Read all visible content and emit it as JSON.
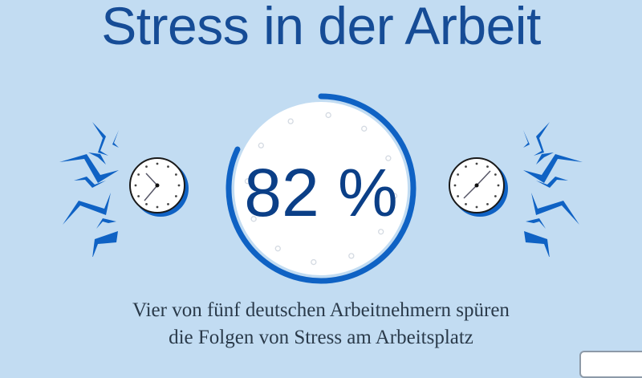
{
  "title": "Stress in der Arbeit",
  "stat": {
    "value": 82,
    "label": "82 %",
    "unit": "%"
  },
  "caption": {
    "line1": "Vier von fünf deutschen Arbeitnehmern spüren",
    "line2": "die Folgen von Stress am Arbeitsplatz"
  },
  "colors": {
    "background": "#c2dcf2",
    "accent": "#0f62c4",
    "title": "#164c96",
    "stat": "#0b3f87"
  },
  "icons": [
    "clock-icon",
    "stress-lightning-icon"
  ]
}
